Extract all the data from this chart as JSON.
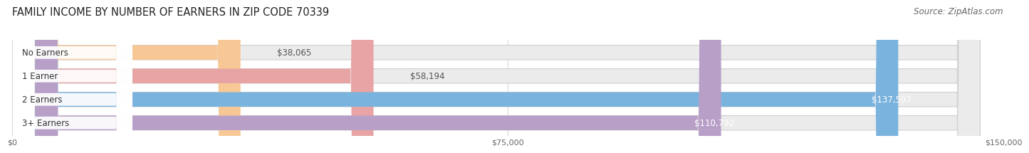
{
  "title": "FAMILY INCOME BY NUMBER OF EARNERS IN ZIP CODE 70339",
  "source": "Source: ZipAtlas.com",
  "categories": [
    "No Earners",
    "1 Earner",
    "2 Earners",
    "3+ Earners"
  ],
  "values": [
    38065,
    58194,
    137597,
    110792
  ],
  "bar_colors": [
    "#f7c896",
    "#e8a4a4",
    "#7ab3de",
    "#b89fc8"
  ],
  "bar_bg_color": "#ebebeb",
  "label_colors": [
    "#444444",
    "#444444",
    "#ffffff",
    "#ffffff"
  ],
  "value_labels": [
    "$38,065",
    "$58,194",
    "$137,597",
    "$110,792"
  ],
  "xlim": [
    0,
    150000
  ],
  "xticks": [
    0,
    75000,
    150000
  ],
  "xticklabels": [
    "$0",
    "$75,000",
    "$150,000"
  ],
  "title_fontsize": 10.5,
  "source_fontsize": 8.5,
  "bar_label_fontsize": 8.5,
  "value_label_fontsize": 8.5,
  "background_color": "#ffffff"
}
